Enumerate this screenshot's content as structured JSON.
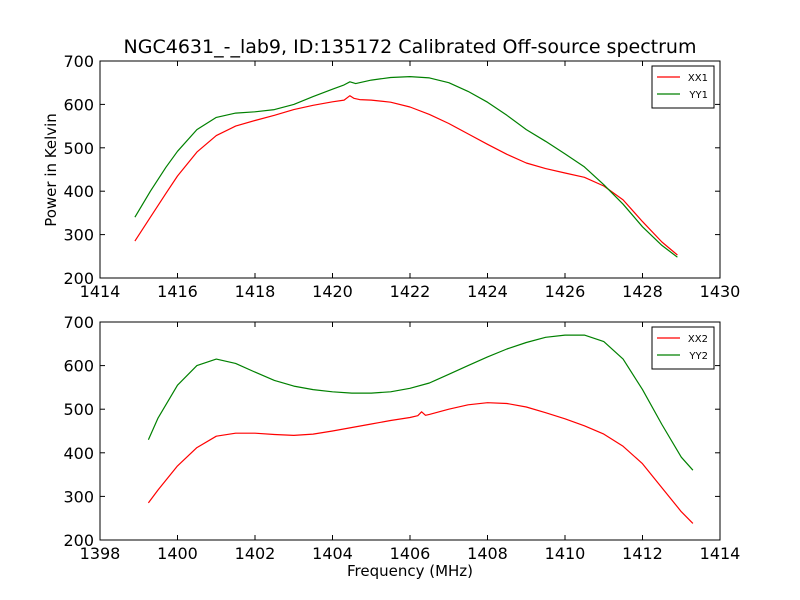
{
  "chart_data": [
    {
      "type": "line",
      "title": "NGC4631_-_lab9, ID:135172 Calibrated Off-source spectrum",
      "xlabel": "",
      "ylabel": "Power in Kelvin",
      "xlim": [
        1414,
        1430
      ],
      "ylim": [
        200,
        700
      ],
      "xticks": [
        1414,
        1416,
        1418,
        1420,
        1422,
        1424,
        1426,
        1428,
        1430
      ],
      "yticks": [
        200,
        300,
        400,
        500,
        600,
        700
      ],
      "legend_position": "top-right",
      "grid": false,
      "series": [
        {
          "name": "XX1",
          "color": "#ff0000",
          "x": [
            1414.9,
            1415.3,
            1415.7,
            1416.0,
            1416.5,
            1417.0,
            1417.5,
            1418.0,
            1418.5,
            1419.0,
            1419.5,
            1420.0,
            1420.3,
            1420.45,
            1420.55,
            1420.7,
            1421.0,
            1421.5,
            1422.0,
            1422.5,
            1423.0,
            1423.5,
            1424.0,
            1424.5,
            1425.0,
            1425.5,
            1426.0,
            1426.5,
            1427.0,
            1427.5,
            1428.0,
            1428.5,
            1428.9
          ],
          "y": [
            285,
            340,
            395,
            435,
            490,
            528,
            550,
            563,
            575,
            588,
            598,
            606,
            610,
            620,
            614,
            611,
            610,
            605,
            594,
            577,
            556,
            532,
            508,
            485,
            465,
            452,
            442,
            432,
            412,
            380,
            330,
            283,
            253
          ]
        },
        {
          "name": "YY1",
          "color": "#008000",
          "x": [
            1414.9,
            1415.3,
            1415.7,
            1416.0,
            1416.5,
            1417.0,
            1417.5,
            1418.0,
            1418.5,
            1419.0,
            1419.5,
            1420.0,
            1420.3,
            1420.45,
            1420.6,
            1420.8,
            1421.0,
            1421.5,
            1422.0,
            1422.5,
            1423.0,
            1423.5,
            1424.0,
            1424.5,
            1425.0,
            1425.5,
            1426.0,
            1426.5,
            1427.0,
            1427.5,
            1428.0,
            1428.5,
            1428.9
          ],
          "y": [
            340,
            400,
            455,
            492,
            542,
            570,
            580,
            583,
            588,
            600,
            618,
            635,
            645,
            652,
            648,
            652,
            656,
            662,
            664,
            661,
            650,
            630,
            605,
            575,
            542,
            515,
            486,
            456,
            415,
            370,
            318,
            275,
            248
          ]
        }
      ]
    },
    {
      "type": "line",
      "title": "",
      "xlabel": "Frequency (MHz)",
      "ylabel": "",
      "xlim": [
        1398,
        1414
      ],
      "ylim": [
        200,
        700
      ],
      "xticks": [
        1398,
        1400,
        1402,
        1404,
        1406,
        1408,
        1410,
        1412,
        1414
      ],
      "yticks": [
        200,
        300,
        400,
        500,
        600,
        700
      ],
      "legend_position": "top-right",
      "grid": false,
      "series": [
        {
          "name": "XX2",
          "color": "#ff0000",
          "x": [
            1399.25,
            1399.5,
            1400.0,
            1400.5,
            1401.0,
            1401.5,
            1402.0,
            1402.5,
            1403.0,
            1403.5,
            1404.0,
            1404.5,
            1405.0,
            1405.5,
            1406.0,
            1406.2,
            1406.3,
            1406.4,
            1406.5,
            1407.0,
            1407.5,
            1408.0,
            1408.5,
            1409.0,
            1409.5,
            1410.0,
            1410.5,
            1411.0,
            1411.5,
            1412.0,
            1412.5,
            1413.0,
            1413.3
          ],
          "y": [
            285,
            315,
            370,
            412,
            438,
            445,
            445,
            442,
            440,
            443,
            450,
            458,
            466,
            474,
            481,
            485,
            494,
            486,
            488,
            500,
            510,
            515,
            513,
            505,
            492,
            478,
            462,
            443,
            415,
            375,
            320,
            265,
            238
          ]
        },
        {
          "name": "YY2",
          "color": "#008000",
          "x": [
            1399.25,
            1399.5,
            1400.0,
            1400.5,
            1401.0,
            1401.5,
            1402.0,
            1402.5,
            1403.0,
            1403.5,
            1404.0,
            1404.5,
            1405.0,
            1405.5,
            1406.0,
            1406.5,
            1407.0,
            1407.5,
            1408.0,
            1408.5,
            1409.0,
            1409.5,
            1410.0,
            1410.5,
            1411.0,
            1411.5,
            1412.0,
            1412.5,
            1413.0,
            1413.3
          ],
          "y": [
            430,
            480,
            555,
            600,
            615,
            605,
            585,
            566,
            553,
            545,
            540,
            537,
            537,
            540,
            548,
            560,
            580,
            600,
            620,
            638,
            653,
            665,
            670,
            670,
            655,
            615,
            545,
            465,
            390,
            360
          ]
        }
      ]
    }
  ]
}
